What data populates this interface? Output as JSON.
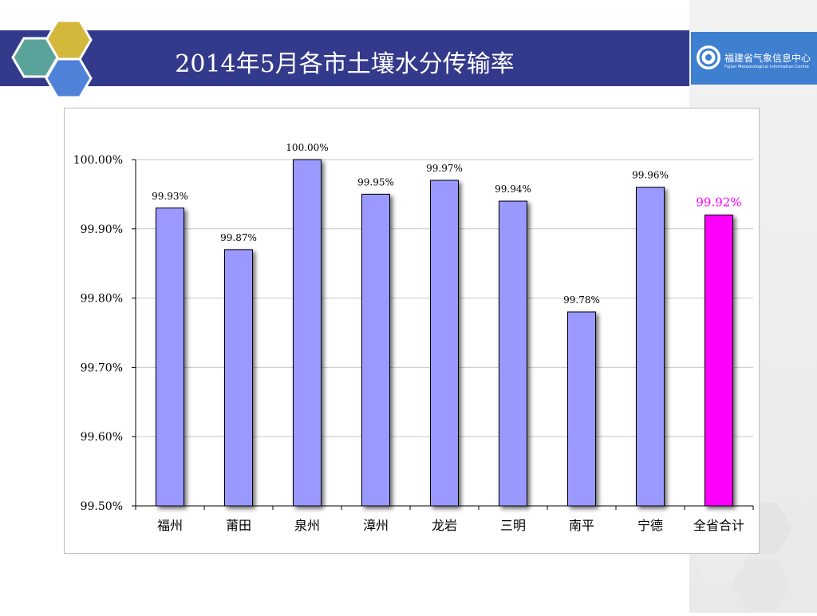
{
  "slide": {
    "title": "2014年5月各市土壤水分传输率",
    "logo": {
      "name_cn": "福建省气象信息中心",
      "name_en": "Fujian Meteorological Information Centre"
    }
  },
  "colors": {
    "title_bar": "#333a8c",
    "bar": "#9999ff",
    "highlight_bar": "#ff00ff",
    "highlight_label": "#ff00ff"
  },
  "chart_data": {
    "type": "bar",
    "categories": [
      "福州",
      "莆田",
      "泉州",
      "漳州",
      "龙岩",
      "三明",
      "南平",
      "宁德",
      "全省合计"
    ],
    "values": [
      99.93,
      99.87,
      100.0,
      99.95,
      99.97,
      99.94,
      99.78,
      99.96,
      99.92
    ],
    "data_labels": [
      "99.93%",
      "99.87%",
      "100.00%",
      "99.95%",
      "99.97%",
      "99.94%",
      "99.78%",
      "99.96%",
      "99.92%"
    ],
    "highlight_index": 8,
    "ylim": [
      99.5,
      100.0
    ],
    "yticks": [
      99.5,
      99.6,
      99.7,
      99.8,
      99.9,
      100.0
    ],
    "ytick_labels": [
      "99.50%",
      "99.60%",
      "99.70%",
      "99.80%",
      "99.90%",
      "100.00%"
    ],
    "grid": true,
    "legend": "none"
  }
}
